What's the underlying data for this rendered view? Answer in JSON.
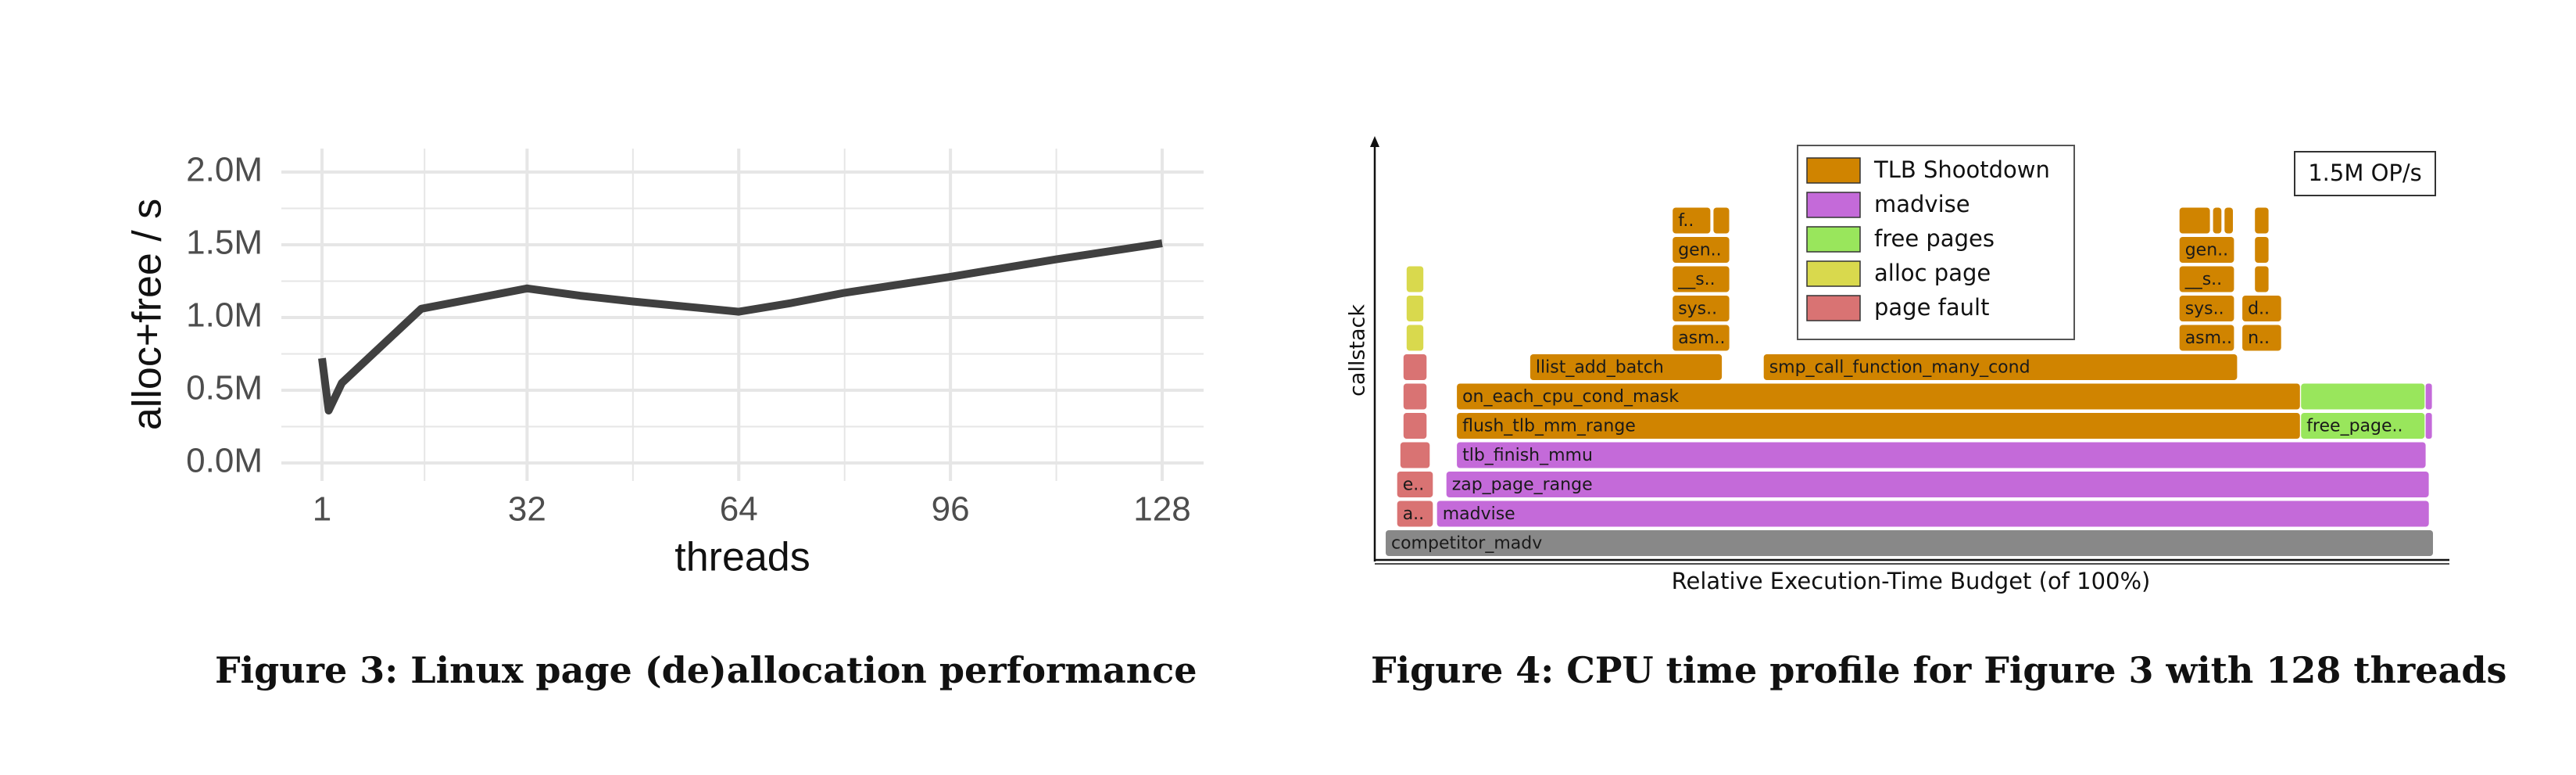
{
  "figure3": {
    "caption": "Figure 3: Linux page (de)allocation performance"
  },
  "figure4": {
    "caption": "Figure 4: CPU time profile for Figure 3 with 128 threads"
  },
  "colors": {
    "line": "#404040",
    "grid": "#e6e6e6",
    "tlb_shootdown": "#d08400",
    "madvise": "#c46ad9",
    "free_pages": "#99e65c",
    "alloc_page": "#d9d94d",
    "page_fault": "#d97373",
    "root": "#888888"
  },
  "chart_data": [
    {
      "type": "line",
      "title": "",
      "xlabel": "threads",
      "ylabel": "alloc+free / s",
      "x_ticks": [
        "1",
        "32",
        "64",
        "96",
        "128"
      ],
      "y_ticks": [
        "0.0M",
        "0.5M",
        "1.0M",
        "1.5M",
        "2.0M"
      ],
      "xlim": [
        1,
        128
      ],
      "ylim": [
        0,
        2000000
      ],
      "grid": true,
      "series": [
        {
          "x": [
            1,
            2,
            4,
            16,
            32,
            40,
            48,
            64,
            72,
            80,
            96,
            112,
            128
          ],
          "y": [
            720000,
            360000,
            550000,
            1060000,
            1200000,
            1150000,
            1110000,
            1040000,
            1100000,
            1170000,
            1280000,
            1400000,
            1510000
          ]
        }
      ]
    },
    {
      "type": "flame",
      "xlabel": "Relative Execution-Time Budget (of 100%)",
      "ylabel": "callstack",
      "annotation": "1.5M OP/s",
      "legend": [
        "TLB Shootdown",
        "madvise",
        "free pages",
        "alloc page",
        "page fault"
      ],
      "legend_placement": "top",
      "frames": [
        {
          "label": "competitor_madv",
          "category": "root",
          "start": 0.0,
          "width": 100.0,
          "depth": 0
        },
        {
          "label": "a..",
          "category": "page_fault",
          "start": 1.1,
          "width": 3.4,
          "depth": 1
        },
        {
          "label": "madvise",
          "category": "madvise",
          "start": 4.9,
          "width": 94.7,
          "depth": 1
        },
        {
          "label": "e..",
          "category": "page_fault",
          "start": 1.1,
          "width": 3.4,
          "depth": 2
        },
        {
          "label": "zap_page_range",
          "category": "madvise",
          "start": 5.8,
          "width": 93.8,
          "depth": 2
        },
        {
          "label": "",
          "category": "page_fault",
          "start": 1.4,
          "width": 2.8,
          "depth": 3
        },
        {
          "label": "tlb_finish_mmu",
          "category": "madvise",
          "start": 6.8,
          "width": 92.5,
          "depth": 3
        },
        {
          "label": "",
          "category": "page_fault",
          "start": 1.7,
          "width": 2.2,
          "depth": 4
        },
        {
          "label": "flush_tlb_mm_range",
          "category": "tlb_shootdown",
          "start": 6.8,
          "width": 80.5,
          "depth": 4
        },
        {
          "label": "free_page..",
          "category": "free_pages",
          "start": 87.4,
          "width": 11.8,
          "depth": 4
        },
        {
          "label": "",
          "category": "page_fault",
          "start": 1.7,
          "width": 2.2,
          "depth": 5
        },
        {
          "label": "on_each_cpu_cond_mask",
          "category": "tlb_shootdown",
          "start": 6.8,
          "width": 80.5,
          "depth": 5
        },
        {
          "label": "",
          "category": "free_pages",
          "start": 87.4,
          "width": 11.8,
          "depth": 5
        },
        {
          "label": "",
          "category": "page_fault",
          "start": 1.7,
          "width": 2.2,
          "depth": 6
        },
        {
          "label": "llist_add_batch",
          "category": "tlb_shootdown",
          "start": 13.8,
          "width": 18.3,
          "depth": 6
        },
        {
          "label": "smp_call_function_many_cond",
          "category": "tlb_shootdown",
          "start": 36.1,
          "width": 45.2,
          "depth": 6
        },
        {
          "label": "",
          "category": "alloc_page",
          "start": 2.0,
          "width": 1.6,
          "depth": 7
        },
        {
          "label": "asm..",
          "category": "tlb_shootdown",
          "start": 27.4,
          "width": 5.4,
          "depth": 7
        },
        {
          "label": "asm..",
          "category": "tlb_shootdown",
          "start": 75.8,
          "width": 5.2,
          "depth": 7
        },
        {
          "label": "n..",
          "category": "tlb_shootdown",
          "start": 81.8,
          "width": 3.7,
          "depth": 7
        },
        {
          "label": "",
          "category": "alloc_page",
          "start": 2.0,
          "width": 1.6,
          "depth": 8
        },
        {
          "label": "sys..",
          "category": "tlb_shootdown",
          "start": 27.4,
          "width": 5.4,
          "depth": 8
        },
        {
          "label": "sys..",
          "category": "tlb_shootdown",
          "start": 75.8,
          "width": 5.2,
          "depth": 8
        },
        {
          "label": "d..",
          "category": "tlb_shootdown",
          "start": 81.8,
          "width": 3.7,
          "depth": 8
        },
        {
          "label": "",
          "category": "alloc_page",
          "start": 2.0,
          "width": 1.6,
          "depth": 9
        },
        {
          "label": "__s..",
          "category": "tlb_shootdown",
          "start": 27.4,
          "width": 5.4,
          "depth": 9
        },
        {
          "label": "__s..",
          "category": "tlb_shootdown",
          "start": 75.8,
          "width": 5.2,
          "depth": 9
        },
        {
          "label": "",
          "category": "tlb_shootdown",
          "start": 83.0,
          "width": 1.3,
          "depth": 9
        },
        {
          "label": "gen..",
          "category": "tlb_shootdown",
          "start": 27.4,
          "width": 5.4,
          "depth": 10
        },
        {
          "label": "gen..",
          "category": "tlb_shootdown",
          "start": 75.8,
          "width": 5.2,
          "depth": 10
        },
        {
          "label": "",
          "category": "tlb_shootdown",
          "start": 83.0,
          "width": 1.3,
          "depth": 10
        },
        {
          "label": "f..",
          "category": "tlb_shootdown",
          "start": 27.4,
          "width": 3.6,
          "depth": 11
        },
        {
          "label": "",
          "category": "tlb_shootdown",
          "start": 31.3,
          "width": 1.5,
          "depth": 11
        },
        {
          "label": "",
          "category": "tlb_shootdown",
          "start": 75.8,
          "width": 2.9,
          "depth": 11
        },
        {
          "label": "",
          "category": "tlb_shootdown",
          "start": 79.0,
          "width": 0.8,
          "depth": 11
        },
        {
          "label": "",
          "category": "tlb_shootdown",
          "start": 80.1,
          "width": 0.8,
          "depth": 11
        },
        {
          "label": "",
          "category": "tlb_shootdown",
          "start": 83.0,
          "width": 1.3,
          "depth": 11
        }
      ]
    }
  ]
}
